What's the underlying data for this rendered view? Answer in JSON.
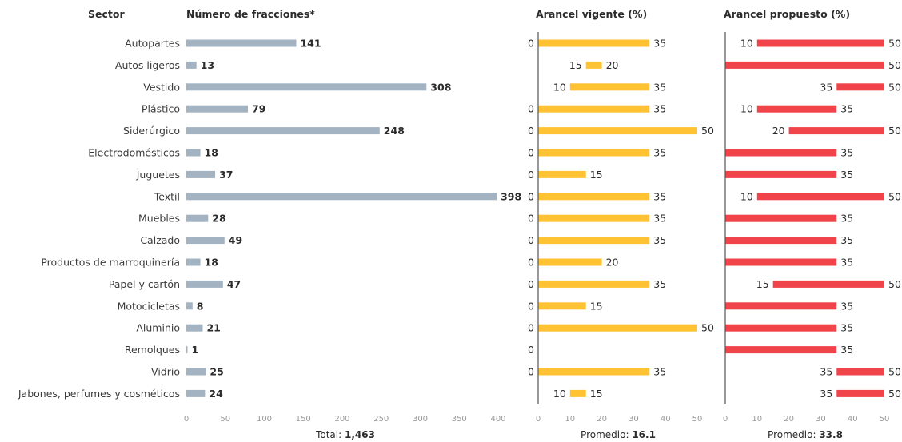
{
  "colors": {
    "fracciones": "#a3b3c2",
    "vigente": "#ffc233",
    "propuesto": "#f0434a"
  },
  "headers": {
    "sector": "Sector",
    "fracciones": "Número de fracciones*",
    "vigente": "Arancel vigente (%)",
    "propuesto": "Arancel propuesto (%)"
  },
  "footer": {
    "total_label": "Total:",
    "total_value": "1,463",
    "vigente_label": "Promedio:",
    "vigente_value": "16.1",
    "propuesto_label": "Promedio:",
    "propuesto_value": "33.8"
  },
  "chart_data": [
    {
      "type": "bar",
      "orientation": "horizontal",
      "title": "Número de fracciones*",
      "categories": [
        "Autopartes",
        "Autos ligeros",
        "Vestido",
        "Plástico",
        "Siderúrgico",
        "Electrodomésticos",
        "Juguetes",
        "Textil",
        "Muebles",
        "Calzado",
        "Productos de marroquinería",
        "Papel y cartón",
        "Motocicletas",
        "Aluminio",
        "Remolques",
        "Vidrio",
        "Jabones, perfumes y cosméticos"
      ],
      "values": [
        141,
        13,
        308,
        79,
        248,
        18,
        37,
        398,
        28,
        49,
        18,
        47,
        8,
        21,
        1,
        25,
        24
      ],
      "xlim": [
        0,
        400
      ],
      "ticks": [
        "0",
        "50",
        "100",
        "150",
        "200",
        "250",
        "300",
        "350",
        "400"
      ]
    },
    {
      "type": "range-bar",
      "orientation": "horizontal",
      "title": "Arancel vigente (%)",
      "categories": [
        "Autopartes",
        "Autos ligeros",
        "Vestido",
        "Plástico",
        "Siderúrgico",
        "Electrodomésticos",
        "Juguetes",
        "Textil",
        "Muebles",
        "Calzado",
        "Productos de marroquinería",
        "Papel y cartón",
        "Motocicletas",
        "Aluminio",
        "Remolques",
        "Vidrio",
        "Jabones, perfumes y cosméticos"
      ],
      "ranges": [
        [
          0,
          35
        ],
        [
          15,
          20
        ],
        [
          10,
          35
        ],
        [
          0,
          35
        ],
        [
          0,
          50
        ],
        [
          0,
          35
        ],
        [
          0,
          15
        ],
        [
          0,
          35
        ],
        [
          0,
          35
        ],
        [
          0,
          35
        ],
        [
          0,
          20
        ],
        [
          0,
          35
        ],
        [
          0,
          15
        ],
        [
          0,
          50
        ],
        [
          0,
          0
        ],
        [
          0,
          35
        ],
        [
          10,
          15
        ]
      ],
      "xlim": [
        0,
        50
      ],
      "ticks": [
        "0",
        "10",
        "20",
        "30",
        "40",
        "50"
      ]
    },
    {
      "type": "range-bar",
      "orientation": "horizontal",
      "title": "Arancel propuesto (%)",
      "categories": [
        "Autopartes",
        "Autos ligeros",
        "Vestido",
        "Plástico",
        "Siderúrgico",
        "Electrodomésticos",
        "Juguetes",
        "Textil",
        "Muebles",
        "Calzado",
        "Productos de marroquinería",
        "Papel y cartón",
        "Motocicletas",
        "Aluminio",
        "Remolques",
        "Vidrio",
        "Jabones, perfumes y cosméticos"
      ],
      "ranges": [
        [
          10,
          50
        ],
        [
          0,
          50
        ],
        [
          35,
          50
        ],
        [
          10,
          35
        ],
        [
          20,
          50
        ],
        [
          0,
          35
        ],
        [
          0,
          35
        ],
        [
          10,
          50
        ],
        [
          0,
          35
        ],
        [
          0,
          35
        ],
        [
          0,
          35
        ],
        [
          15,
          50
        ],
        [
          0,
          35
        ],
        [
          0,
          35
        ],
        [
          0,
          35
        ],
        [
          35,
          50
        ],
        [
          35,
          50
        ]
      ],
      "labels_low": [
        "10",
        "",
        "35",
        "10",
        "20",
        "",
        "",
        "10",
        "",
        "",
        "",
        "15",
        "",
        "",
        "",
        "35",
        "35"
      ],
      "labels_high": [
        "50",
        "50",
        "50",
        "35",
        "50",
        "35",
        "35",
        "50",
        "35",
        "35",
        "35",
        "50",
        "35",
        "35",
        "35",
        "50",
        "50"
      ],
      "xlim": [
        0,
        50
      ],
      "ticks": [
        "0",
        "10",
        "20",
        "30",
        "40",
        "50"
      ]
    }
  ]
}
